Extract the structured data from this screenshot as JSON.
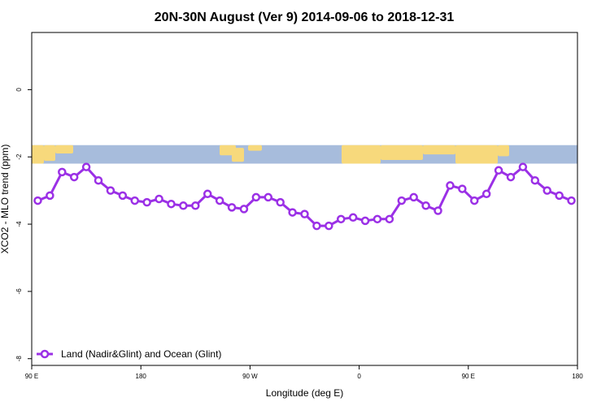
{
  "chart_data": {
    "type": "line",
    "title": "20N-30N August (Ver 9)   2014-09-06 to 2018-12-31",
    "xlabel": "Longitude (deg E)",
    "ylabel": "XCO2 - MLO trend (ppm)",
    "xlim": [
      90,
      540
    ],
    "ylim": [
      -8.2,
      1.7
    ],
    "x_ticks": [
      {
        "value": 90,
        "label": "90 E"
      },
      {
        "value": 180,
        "label": "180"
      },
      {
        "value": 270,
        "label": "90 W"
      },
      {
        "value": 360,
        "label": "0"
      },
      {
        "value": 450,
        "label": "90 E"
      },
      {
        "value": 540,
        "label": "180"
      }
    ],
    "y_ticks": [
      {
        "value": 0,
        "label": "0"
      },
      {
        "value": -2,
        "label": "-2"
      },
      {
        "value": -4,
        "label": "-4"
      },
      {
        "value": -6,
        "label": "-6"
      },
      {
        "value": -8,
        "label": "-8"
      }
    ],
    "grid": false,
    "legend_position": "bottom-left",
    "map_strip": {
      "y_top": -1.65,
      "y_bottom": -2.2,
      "ocean_color": "#a7bcdc",
      "land_color": "#f7d97c"
    },
    "series": [
      {
        "name": "Land (Nadir&Glint) and Ocean (Glint)",
        "color": "#9b30e6",
        "x": [
          95,
          105,
          115,
          125,
          135,
          145,
          155,
          165,
          175,
          185,
          195,
          205,
          215,
          225,
          235,
          245,
          255,
          265,
          275,
          285,
          295,
          305,
          315,
          325,
          335,
          345,
          355,
          365,
          375,
          385,
          395,
          405,
          415,
          425,
          435,
          445,
          455,
          465,
          475,
          485,
          495,
          505,
          515,
          525,
          535
        ],
        "y": [
          -3.3,
          -3.15,
          -2.45,
          -2.6,
          -2.3,
          -2.7,
          -3.0,
          -3.15,
          -3.3,
          -3.35,
          -3.25,
          -3.4,
          -3.45,
          -3.45,
          -3.1,
          -3.3,
          -3.5,
          -3.55,
          -3.2,
          -3.2,
          -3.35,
          -3.65,
          -3.7,
          -4.05,
          -4.05,
          -3.85,
          -3.8,
          -3.9,
          -3.85,
          -3.85,
          -3.3,
          -3.2,
          -3.45,
          -3.6,
          -2.85,
          -2.95,
          -3.3,
          -3.1,
          -2.4,
          -2.6,
          -2.3,
          -2.7,
          -3.0,
          -3.15,
          -3.3
        ]
      }
    ]
  }
}
